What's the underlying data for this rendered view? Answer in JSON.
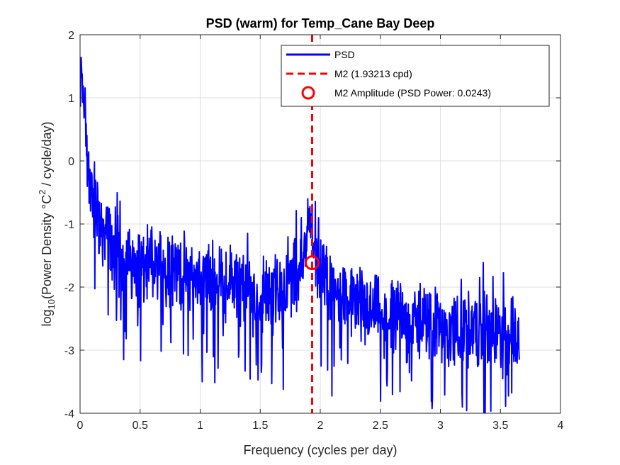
{
  "chart_data": {
    "type": "line",
    "title": "PSD (warm) for Temp_Cane Bay Deep",
    "xlabel": "Frequency (cycles per day)",
    "ylabel": {
      "prefix": "log",
      "sub": "10",
      "mid": "(Power Density °C",
      "sup": "2",
      "suffix": " / cycle/day)"
    },
    "xlim": [
      0,
      4
    ],
    "ylim": [
      -4,
      2
    ],
    "xticks": [
      0,
      0.5,
      1,
      1.5,
      2,
      2.5,
      3,
      3.5,
      4
    ],
    "xtick_labels": [
      "0",
      "0.5",
      "1",
      "1.5",
      "2",
      "2.5",
      "3",
      "3.5",
      "4"
    ],
    "yticks": [
      -4,
      -3,
      -2,
      -1,
      0,
      1,
      2
    ],
    "ytick_labels": [
      "-4",
      "-3",
      "-2",
      "-1",
      "0",
      "1",
      "2"
    ],
    "grid": true,
    "legend_position": "top-right",
    "series": [
      {
        "name": "PSD",
        "color": "#0000ff",
        "x": [
          0.0,
          0.01,
          0.02,
          0.03,
          0.05,
          0.07,
          0.1,
          0.15,
          0.2,
          0.25,
          0.3,
          0.4,
          0.5,
          0.6,
          0.7,
          0.8,
          0.9,
          1.0,
          1.1,
          1.2,
          1.3,
          1.4,
          1.5,
          1.6,
          1.7,
          1.75,
          1.8,
          1.85,
          1.88,
          1.9,
          1.91,
          1.92,
          1.93,
          1.94,
          1.95,
          1.97,
          2.0,
          2.05,
          2.1,
          2.2,
          2.3,
          2.4,
          2.5,
          2.6,
          2.7,
          2.8,
          2.9,
          3.0,
          3.1,
          3.2,
          3.3,
          3.4,
          3.5,
          3.6,
          3.66
        ],
        "y": [
          0.6,
          1.6,
          1.1,
          0.9,
          0.5,
          -0.2,
          -0.6,
          -0.9,
          -1.1,
          -1.3,
          -1.45,
          -1.6,
          -1.65,
          -1.65,
          -1.6,
          -1.7,
          -1.8,
          -1.85,
          -1.9,
          -1.85,
          -1.95,
          -2.1,
          -2.15,
          -2.1,
          -2.0,
          -1.9,
          -1.75,
          -1.5,
          -1.3,
          -1.1,
          -0.9,
          -0.6,
          -0.8,
          -1.1,
          -1.3,
          -1.5,
          -1.7,
          -1.9,
          -2.1,
          -2.2,
          -2.3,
          -2.4,
          -2.45,
          -2.5,
          -2.55,
          -2.6,
          -2.55,
          -2.6,
          -2.7,
          -2.65,
          -2.7,
          -2.7,
          -2.75,
          -2.8,
          -2.8
        ]
      }
    ],
    "m2_line": {
      "name": "M2 (1.93213 cpd)",
      "x": 1.93213,
      "color": "#ff0000"
    },
    "m2_marker": {
      "name": "M2 Amplitude (PSD Power: 0.0243)",
      "x": 1.93213,
      "y": -1.614,
      "color": "#ff0000"
    }
  }
}
